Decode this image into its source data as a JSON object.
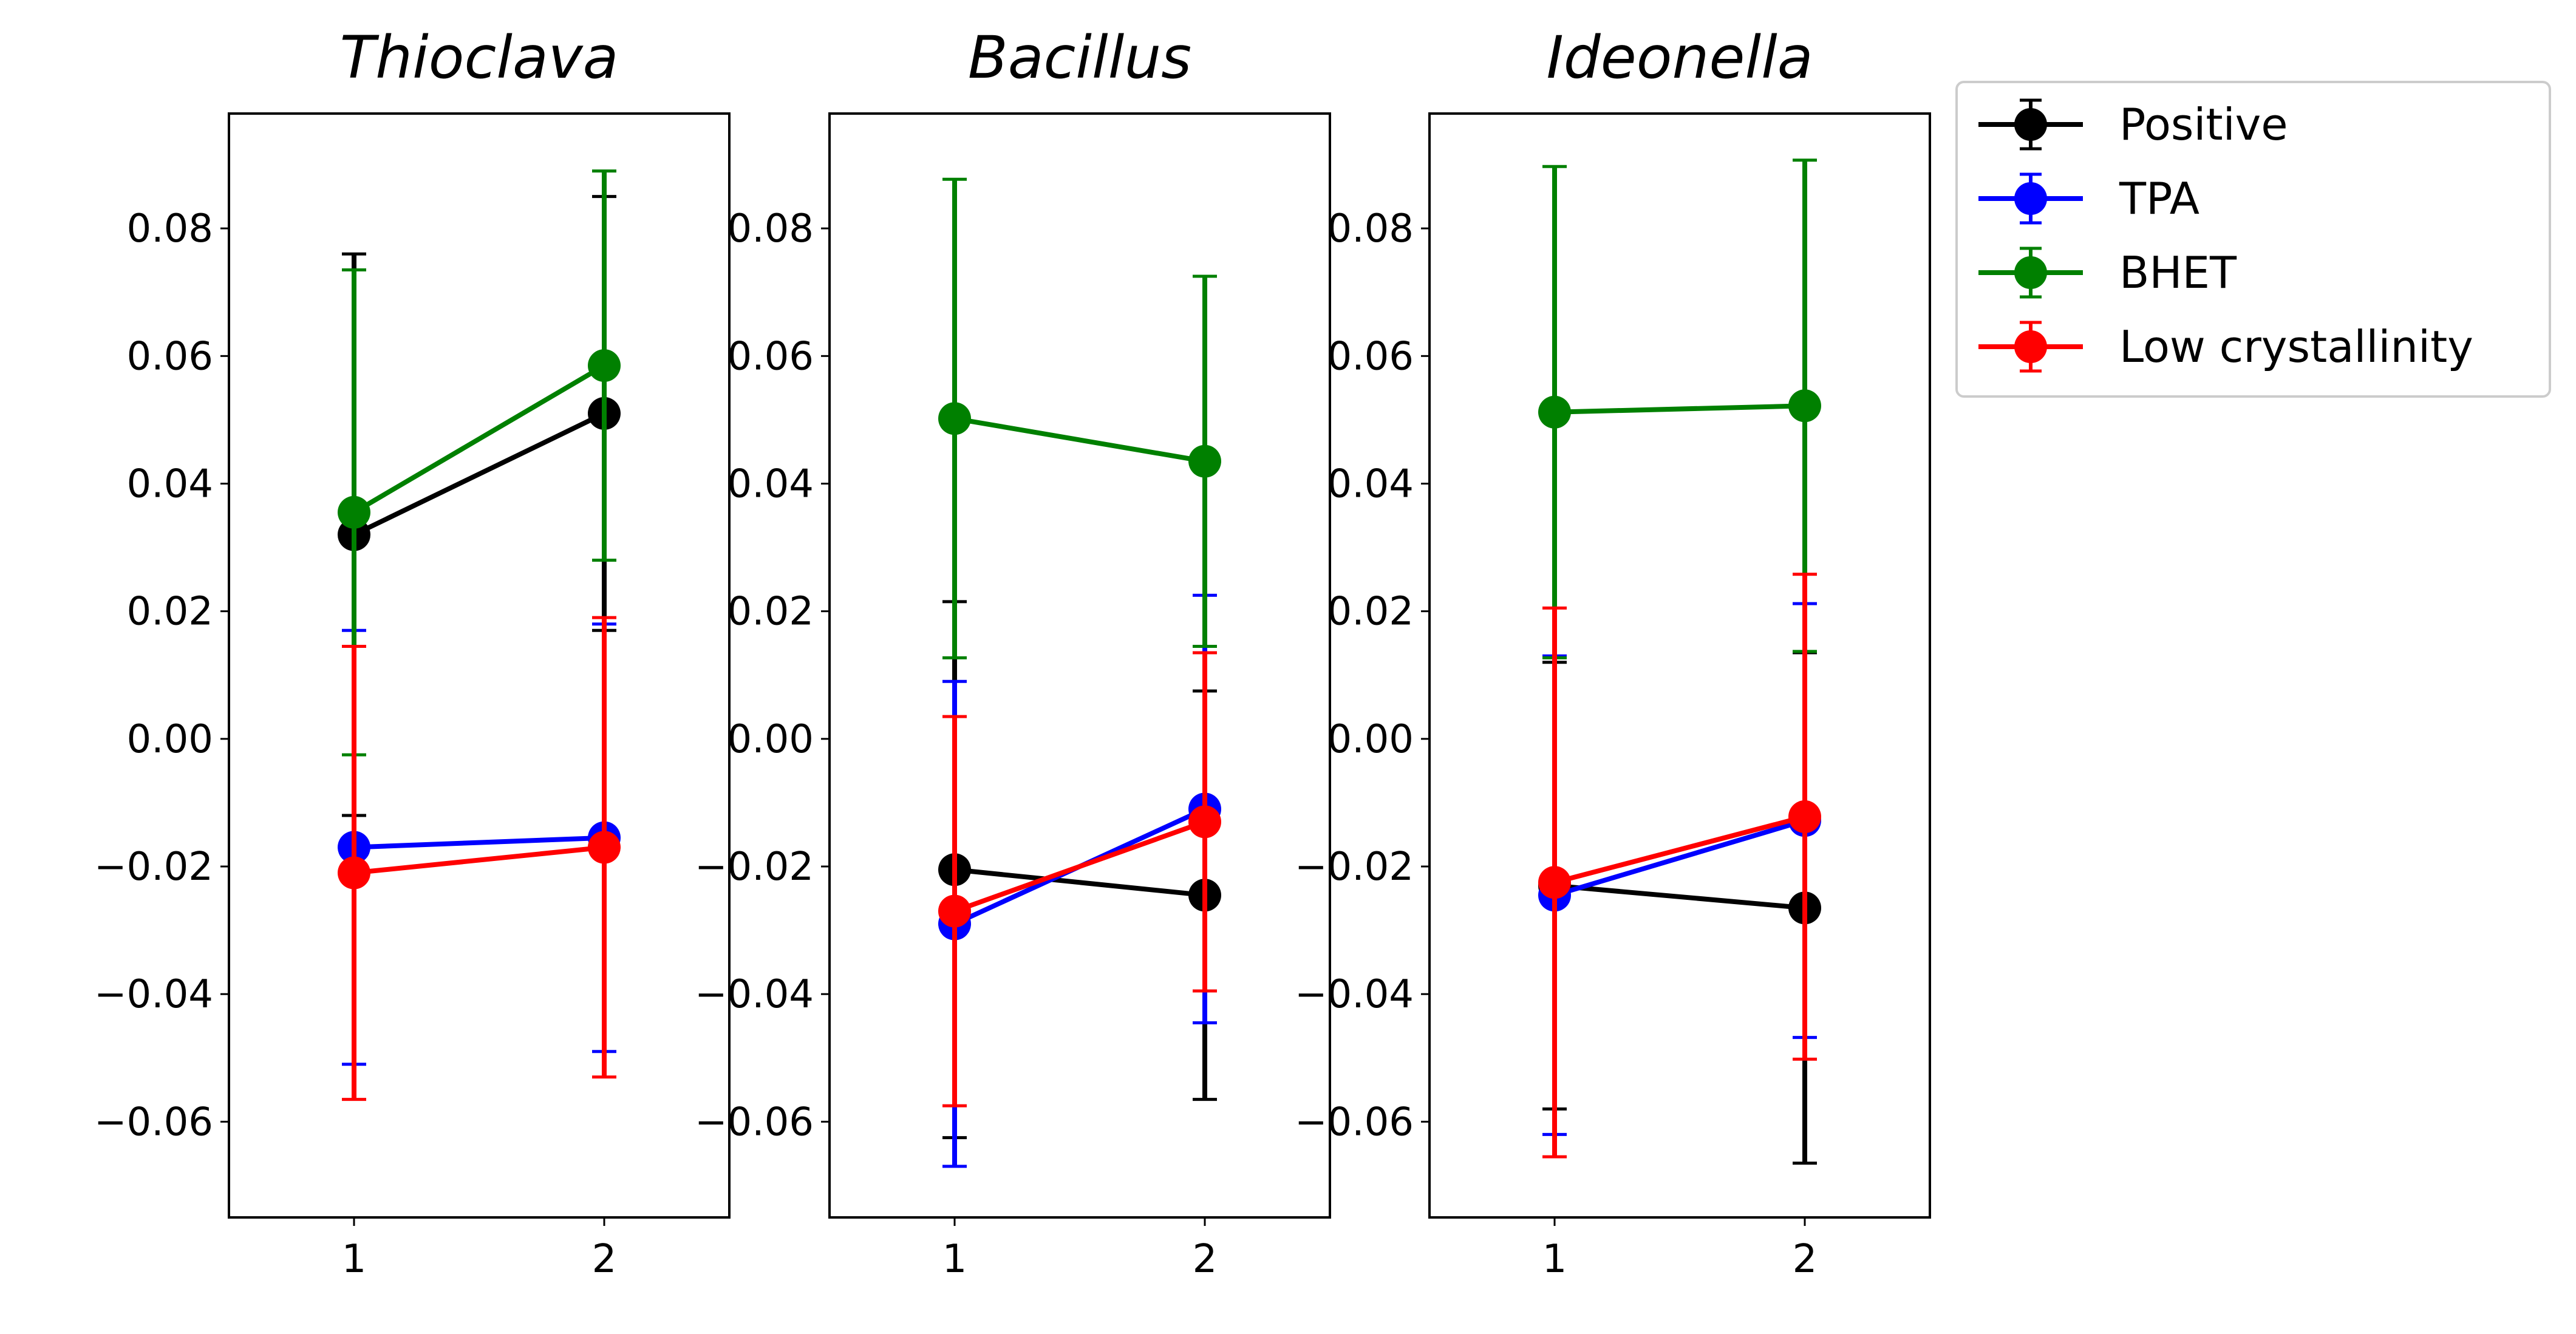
{
  "chart_data": [
    {
      "type": "line",
      "title": "Thioclava",
      "x": [
        1,
        2
      ],
      "xticks": [
        "1",
        "2"
      ],
      "xlim": [
        0.5,
        2.5
      ],
      "ylim": [
        -0.075,
        0.098
      ],
      "yticks": [
        "0.08",
        "0.06",
        "0.04",
        "0.02",
        "0.00",
        "−0.02",
        "−0.04",
        "−0.06"
      ],
      "series": [
        {
          "name": "Positive",
          "color": "#000000",
          "values": [
            0.032,
            0.051
          ],
          "err": [
            0.044,
            0.034
          ]
        },
        {
          "name": "TPA",
          "color": "#0000ff",
          "values": [
            -0.017,
            -0.0155
          ],
          "err": [
            0.034,
            0.0335
          ]
        },
        {
          "name": "BHET",
          "color": "#008000",
          "values": [
            0.0355,
            0.0585
          ],
          "err": [
            0.038,
            0.0305
          ]
        },
        {
          "name": "Low crystallinity",
          "color": "#ff0000",
          "values": [
            -0.021,
            -0.017
          ],
          "err": [
            0.0355,
            0.036
          ]
        }
      ]
    },
    {
      "type": "line",
      "title": "Bacillus",
      "x": [
        1,
        2
      ],
      "xticks": [
        "1",
        "2"
      ],
      "xlim": [
        0.5,
        2.5
      ],
      "ylim": [
        -0.075,
        0.098
      ],
      "yticks": [
        "0.08",
        "0.06",
        "0.04",
        "0.02",
        "0.00",
        "−0.02",
        "−0.04",
        "−0.06"
      ],
      "series": [
        {
          "name": "Positive",
          "color": "#000000",
          "values": [
            -0.0205,
            -0.0245
          ],
          "err": [
            0.042,
            0.032
          ]
        },
        {
          "name": "TPA",
          "color": "#0000ff",
          "values": [
            -0.029,
            -0.011
          ],
          "err": [
            0.038,
            0.0335
          ]
        },
        {
          "name": "BHET",
          "color": "#008000",
          "values": [
            0.0502,
            0.0435
          ],
          "err": [
            0.0375,
            0.029
          ]
        },
        {
          "name": "Low crystallinity",
          "color": "#ff0000",
          "values": [
            -0.027,
            -0.013
          ],
          "err": [
            0.0305,
            0.0265
          ]
        }
      ]
    },
    {
      "type": "line",
      "title": "Ideonella",
      "x": [
        1,
        2
      ],
      "xticks": [
        "1",
        "2"
      ],
      "xlim": [
        0.5,
        2.5
      ],
      "ylim": [
        -0.075,
        0.098
      ],
      "yticks": [
        "0.08",
        "0.06",
        "0.04",
        "0.02",
        "0.00",
        "−0.02",
        "−0.04",
        "−0.06"
      ],
      "series": [
        {
          "name": "Positive",
          "color": "#000000",
          "values": [
            -0.023,
            -0.0265
          ],
          "err": [
            0.035,
            0.04
          ]
        },
        {
          "name": "TPA",
          "color": "#0000ff",
          "values": [
            -0.0245,
            -0.0128
          ],
          "err": [
            0.0375,
            0.034
          ]
        },
        {
          "name": "BHET",
          "color": "#008000",
          "values": [
            0.0512,
            0.0522
          ],
          "err": [
            0.0385,
            0.0385
          ]
        },
        {
          "name": "Low crystallinity",
          "color": "#ff0000",
          "values": [
            -0.0225,
            -0.0122
          ],
          "err": [
            0.043,
            0.038
          ]
        }
      ]
    }
  ],
  "legend": {
    "placement": "outside-right-top",
    "entries": [
      {
        "label": "Positive",
        "color": "#000000"
      },
      {
        "label": "TPA",
        "color": "#0000ff"
      },
      {
        "label": "BHET",
        "color": "#008000"
      },
      {
        "label": "Low crystallinity",
        "color": "#ff0000"
      }
    ]
  }
}
